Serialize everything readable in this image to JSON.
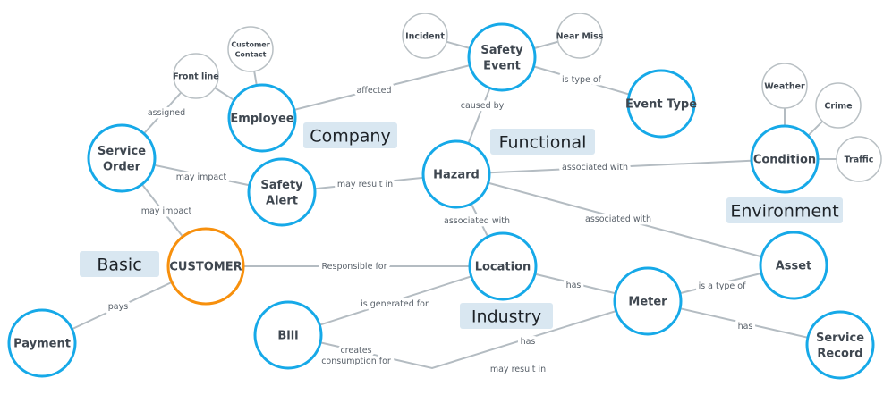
{
  "colors": {
    "primary_node": "#16a9e8",
    "root_node": "#f7900d",
    "minor_node": "#b9c0c4",
    "edge": "#b4bcc2",
    "category_bg": "#d9e7f1"
  },
  "categories": [
    {
      "id": "company",
      "label": "Company"
    },
    {
      "id": "functional",
      "label": "Functional"
    },
    {
      "id": "environment",
      "label": "Environment"
    },
    {
      "id": "basic",
      "label": "Basic"
    },
    {
      "id": "industry",
      "label": "Industry"
    }
  ],
  "nodes": [
    {
      "id": "employee",
      "label": [
        "Employee"
      ],
      "kind": "primary"
    },
    {
      "id": "customer_contact",
      "label": [
        "Customer",
        "Contact"
      ],
      "kind": "minor"
    },
    {
      "id": "front_line",
      "label": [
        "Front line"
      ],
      "kind": "minor"
    },
    {
      "id": "service_order",
      "label": [
        "Service",
        "Order"
      ],
      "kind": "primary"
    },
    {
      "id": "safety_alert",
      "label": [
        "Safety",
        "Alert"
      ],
      "kind": "primary"
    },
    {
      "id": "customer",
      "label": [
        "CUSTOMER"
      ],
      "kind": "root"
    },
    {
      "id": "payment",
      "label": [
        "Payment"
      ],
      "kind": "primary"
    },
    {
      "id": "bill",
      "label": [
        "Bill"
      ],
      "kind": "primary"
    },
    {
      "id": "incident",
      "label": [
        "Incident"
      ],
      "kind": "minor"
    },
    {
      "id": "safety_event",
      "label": [
        "Safety",
        "Event"
      ],
      "kind": "primary"
    },
    {
      "id": "near_miss",
      "label": [
        "Near Miss"
      ],
      "kind": "minor"
    },
    {
      "id": "event_type",
      "label": [
        "Event Type"
      ],
      "kind": "primary"
    },
    {
      "id": "hazard",
      "label": [
        "Hazard"
      ],
      "kind": "primary"
    },
    {
      "id": "location",
      "label": [
        "Location"
      ],
      "kind": "primary"
    },
    {
      "id": "meter",
      "label": [
        "Meter"
      ],
      "kind": "primary"
    },
    {
      "id": "asset",
      "label": [
        "Asset"
      ],
      "kind": "primary"
    },
    {
      "id": "service_record",
      "label": [
        "Service",
        "Record"
      ],
      "kind": "primary"
    },
    {
      "id": "condition",
      "label": [
        "Condition"
      ],
      "kind": "primary"
    },
    {
      "id": "weather",
      "label": [
        "Weather"
      ],
      "kind": "minor"
    },
    {
      "id": "crime",
      "label": [
        "Crime"
      ],
      "kind": "minor"
    },
    {
      "id": "traffic",
      "label": [
        "Traffic"
      ],
      "kind": "minor"
    }
  ],
  "edges": [
    {
      "from": "service_order",
      "to": "front_line",
      "label": [
        "assigned"
      ]
    },
    {
      "from": "front_line",
      "to": "employee",
      "label": []
    },
    {
      "from": "customer_contact",
      "to": "employee",
      "label": []
    },
    {
      "from": "employee",
      "to": "safety_event",
      "label": [
        "affected"
      ]
    },
    {
      "from": "incident",
      "to": "safety_event",
      "label": []
    },
    {
      "from": "near_miss",
      "to": "safety_event",
      "label": []
    },
    {
      "from": "safety_event",
      "to": "event_type",
      "label": [
        "is type of"
      ]
    },
    {
      "from": "safety_event",
      "to": "hazard",
      "label": [
        "caused by"
      ]
    },
    {
      "from": "service_order",
      "to": "safety_alert",
      "label": [
        "may impact"
      ]
    },
    {
      "from": "service_order",
      "to": "customer",
      "label": [
        "may impact"
      ]
    },
    {
      "from": "safety_alert",
      "to": "hazard",
      "label": [
        "may result in"
      ]
    },
    {
      "from": "hazard",
      "to": "condition",
      "label": [
        "associated with"
      ]
    },
    {
      "from": "hazard",
      "to": "location",
      "label": [
        "associated with"
      ]
    },
    {
      "from": "hazard",
      "to": "asset",
      "label": [
        "associated with"
      ]
    },
    {
      "from": "customer",
      "to": "location",
      "label": [
        "Responsible for"
      ]
    },
    {
      "from": "customer",
      "to": "payment",
      "label": [
        "pays"
      ]
    },
    {
      "from": "bill",
      "to": "location",
      "label": [
        "is generated for"
      ]
    },
    {
      "from": "bill",
      "to": "meter",
      "label": [
        "creates",
        "consumption for"
      ]
    },
    {
      "from": "meter",
      "to": "bill",
      "label": [
        "has"
      ]
    },
    {
      "from": "location",
      "to": "meter",
      "label": [
        "has"
      ]
    },
    {
      "from": "meter",
      "to": "asset",
      "label": [
        "is a type of"
      ]
    },
    {
      "from": "meter",
      "to": "service_record",
      "label": [
        "has"
      ]
    },
    {
      "from": "condition",
      "to": "weather",
      "label": []
    },
    {
      "from": "condition",
      "to": "crime",
      "label": []
    },
    {
      "from": "condition",
      "to": "traffic",
      "label": []
    }
  ],
  "free_labels": [
    "may result in"
  ]
}
